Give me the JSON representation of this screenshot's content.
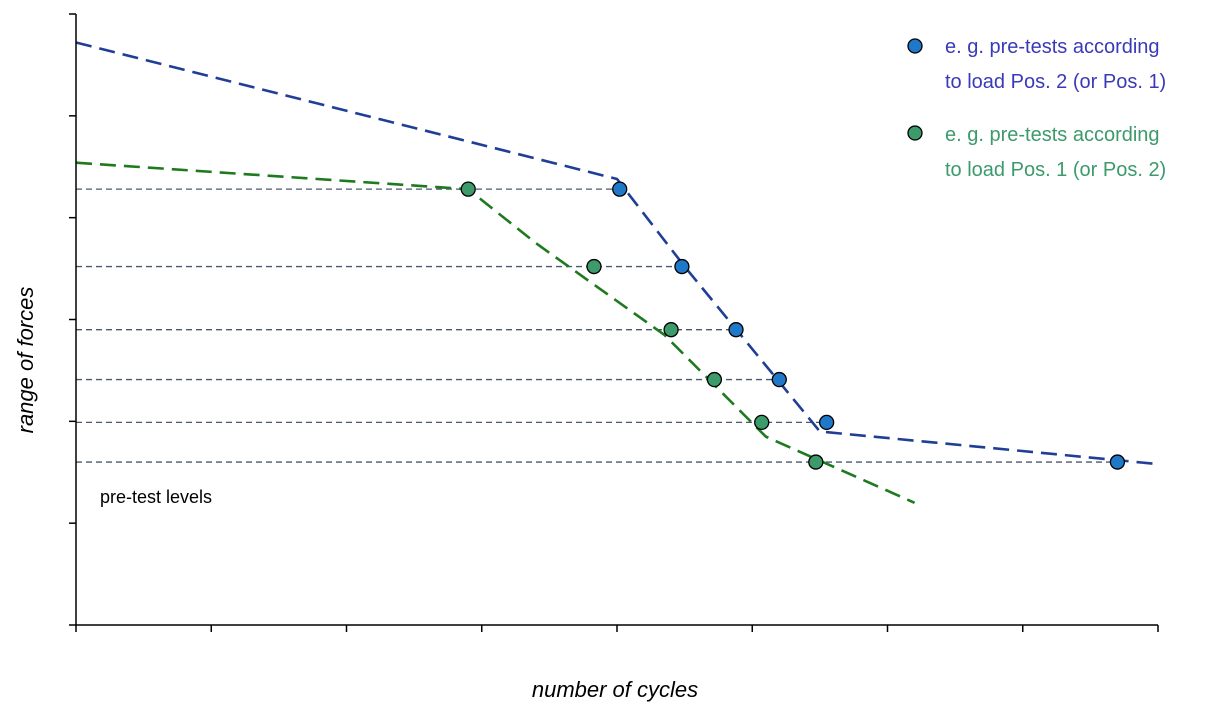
{
  "chart_data": {
    "type": "line",
    "xlabel": "number of cycles",
    "ylabel": "range of forces",
    "annotation": "pre-test levels",
    "x_range": [
      0,
      8
    ],
    "y_range": [
      0,
      6
    ],
    "x_ticks": [
      0,
      1,
      2,
      3,
      4,
      5,
      6,
      7,
      8
    ],
    "y_ticks": [
      0,
      1,
      2,
      3,
      4,
      5,
      6
    ],
    "grid": false,
    "legend_position": "top-right",
    "pretest_levels": [
      4.28,
      3.52,
      2.9,
      2.41,
      1.99,
      1.6
    ],
    "series": [
      {
        "name": "e. g. pre-tests according to load Pos. 2 (or Pos. 1)",
        "legend_lines": [
          "e. g. pre-tests according",
          "to load Pos. 2 (or Pos. 1)"
        ],
        "color": "#1f78c8",
        "line_color": "#1f3e96",
        "text_color": "#3a3ab8",
        "line_points": [
          [
            0.0,
            5.72
          ],
          [
            4.0,
            4.38
          ],
          [
            4.5,
            3.52
          ],
          [
            5.5,
            1.9
          ],
          [
            8.0,
            1.58
          ]
        ],
        "markers": [
          [
            4.02,
            4.28
          ],
          [
            4.48,
            3.52
          ],
          [
            4.88,
            2.9
          ],
          [
            5.2,
            2.41
          ],
          [
            5.55,
            1.99
          ],
          [
            7.7,
            1.6
          ]
        ]
      },
      {
        "name": "e. g. pre-tests according to load Pos. 1 (or Pos. 2)",
        "legend_lines": [
          "e. g. pre-tests according",
          "to load Pos. 1 (or Pos. 2)"
        ],
        "color": "#3c9a6b",
        "line_color": "#1e7a1e",
        "text_color": "#3c9a6b",
        "line_points": [
          [
            0.0,
            4.54
          ],
          [
            2.9,
            4.28
          ],
          [
            3.4,
            3.75
          ],
          [
            4.35,
            2.85
          ],
          [
            5.1,
            1.85
          ],
          [
            6.2,
            1.2
          ]
        ],
        "markers": [
          [
            2.9,
            4.28
          ],
          [
            3.83,
            3.52
          ],
          [
            4.4,
            2.9
          ],
          [
            4.72,
            2.41
          ],
          [
            5.07,
            1.99
          ],
          [
            5.47,
            1.6
          ]
        ]
      }
    ]
  }
}
